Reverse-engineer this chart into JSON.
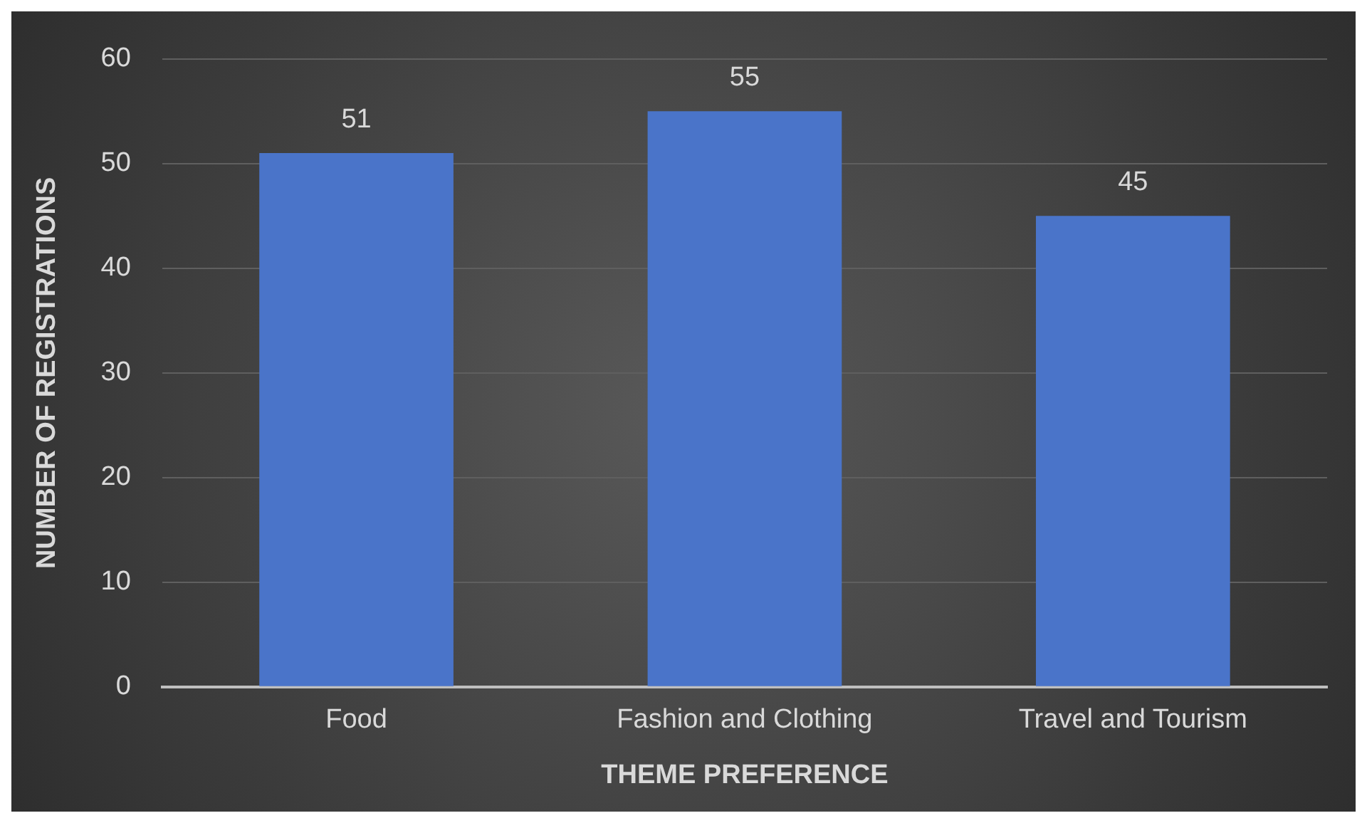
{
  "chart_data": {
    "type": "bar",
    "xlabel": "THEME PREFERENCE",
    "ylabel": "NUMBER OF REGISTRATIONS",
    "categories": [
      "Food",
      "Fashion and Clothing",
      "Travel and Tourism"
    ],
    "values": [
      51,
      55,
      45
    ],
    "color": "#4a74c9",
    "ylim": [
      0,
      60
    ],
    "yticks": [
      0,
      10,
      20,
      30,
      40,
      50,
      60
    ],
    "grid": "y",
    "data_labels": true,
    "legend": false
  }
}
